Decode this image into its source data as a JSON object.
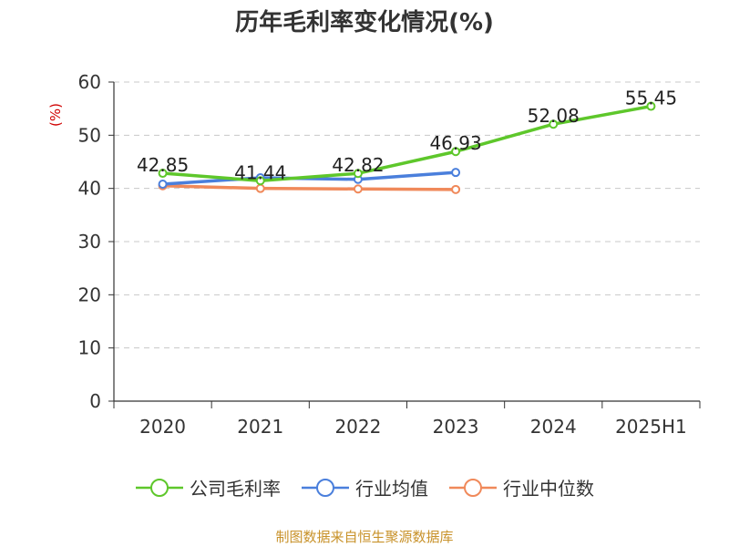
{
  "title": "历年毛利率变化情况(%)",
  "source": "制图数据来自恒生聚源数据库",
  "chart_data": {
    "type": "line",
    "title": "历年毛利率变化情况(%)",
    "xlabel": "",
    "ylabel": "(%)",
    "categories": [
      "2020",
      "2021",
      "2022",
      "2023",
      "2024",
      "2025H1"
    ],
    "ylim": [
      0,
      60
    ],
    "yticks": [
      0,
      10,
      20,
      30,
      40,
      50,
      60
    ],
    "grid": true,
    "legend_position": "bottom",
    "series": [
      {
        "name": "公司毛利率",
        "color": "#5ec72b",
        "values": [
          42.85,
          41.44,
          42.82,
          46.93,
          52.08,
          55.45
        ],
        "labels": [
          "42.85",
          "41.44",
          "42.82",
          "46.93",
          "52.08",
          "55.45"
        ]
      },
      {
        "name": "行业均值",
        "color": "#4a7fdc",
        "values": [
          40.8,
          42.0,
          41.7,
          43.0,
          null,
          null
        ]
      },
      {
        "name": "行业中位数",
        "color": "#f0895a",
        "values": [
          40.5,
          40.0,
          39.9,
          39.8,
          null,
          null
        ]
      }
    ]
  }
}
